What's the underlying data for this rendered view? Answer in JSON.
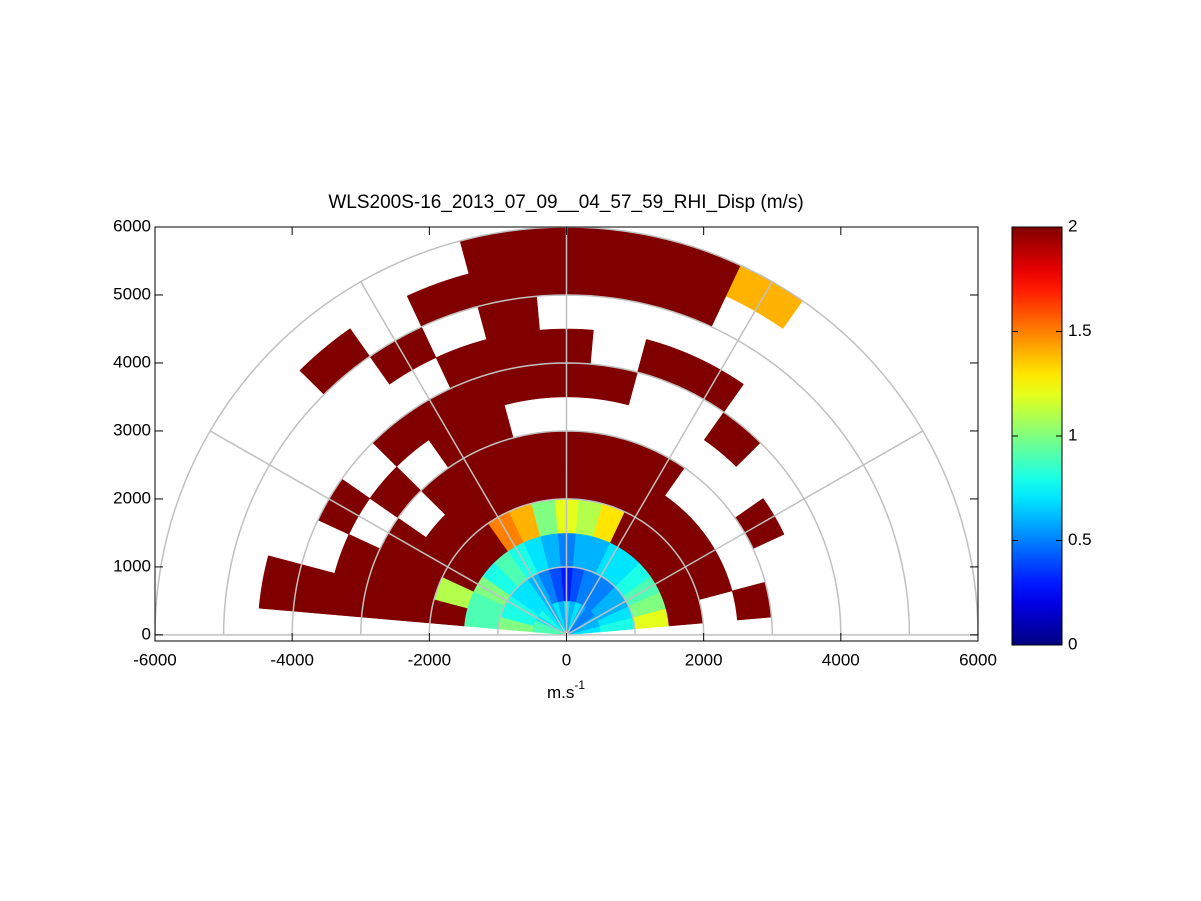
{
  "chart_data": {
    "type": "polar_heatmap",
    "title": "WLS200S-16_2013_07_09__04_57_59_RHI_Disp (m/s)",
    "xlabel": {
      "base": "m.s",
      "superscript": "-1"
    },
    "xlim": [
      -6000,
      6000
    ],
    "xticks": [
      -6000,
      -4000,
      -2000,
      0,
      2000,
      4000,
      6000
    ],
    "ylim": [
      -90,
      6000
    ],
    "yticks": [
      0,
      1000,
      2000,
      3000,
      4000,
      5000,
      6000
    ],
    "polar_grid": {
      "rings": [
        1000,
        2000,
        3000,
        4000,
        5000,
        6000
      ],
      "spokes": [
        0,
        30,
        60,
        90,
        120,
        150,
        180
      ],
      "color": "#c0c0c0"
    },
    "colormap": "jet",
    "clim": [
      0,
      2
    ],
    "cticks": [
      0,
      0.5,
      1,
      1.5,
      2
    ],
    "angles": [
      10,
      20,
      30,
      40,
      50,
      60,
      70,
      80,
      90,
      100,
      110,
      120,
      130,
      140,
      150,
      160,
      170
    ],
    "ranges": [
      0,
      500,
      1000,
      1500,
      2000,
      2500,
      3000,
      3500,
      4000,
      4500,
      5000,
      5500,
      6000
    ],
    "values": [
      [
        0.7,
        0.8,
        1.2,
        2,
        null,
        2,
        null,
        null,
        null,
        null,
        null,
        null
      ],
      [
        0.6,
        0.7,
        1.0,
        2,
        2,
        null,
        null,
        null,
        null,
        null,
        null,
        null
      ],
      [
        0.6,
        0.6,
        0.9,
        2,
        2,
        null,
        2,
        null,
        null,
        null,
        null,
        null
      ],
      [
        0.5,
        0.6,
        0.8,
        2,
        2,
        null,
        null,
        null,
        null,
        null,
        null,
        null
      ],
      [
        0.5,
        0.5,
        0.7,
        2,
        2,
        null,
        null,
        2,
        null,
        null,
        null,
        null
      ],
      [
        0.6,
        0.5,
        0.7,
        2,
        2,
        2,
        null,
        null,
        2,
        null,
        null,
        1.4
      ],
      [
        0.7,
        0.5,
        0.6,
        1.3,
        2,
        2,
        null,
        null,
        2,
        null,
        2,
        2
      ],
      [
        0.6,
        0.4,
        0.6,
        1.1,
        2,
        2,
        null,
        2,
        null,
        null,
        2,
        2
      ],
      [
        0.7,
        0.3,
        0.5,
        1.2,
        2,
        2,
        null,
        2,
        2,
        null,
        2,
        2
      ],
      [
        0.6,
        0.4,
        0.6,
        1.0,
        2,
        2,
        null,
        2,
        2,
        2,
        2,
        2
      ],
      [
        0.7,
        0.5,
        0.7,
        1.4,
        2,
        2,
        2,
        2,
        2,
        null,
        2,
        null
      ],
      [
        0.6,
        0.6,
        0.8,
        1.5,
        2,
        2,
        2,
        2,
        null,
        2,
        null,
        null
      ],
      [
        0.7,
        0.7,
        0.9,
        2,
        2,
        2,
        null,
        2,
        null,
        null,
        2,
        null
      ],
      [
        0.8,
        0.7,
        0.8,
        2,
        2,
        null,
        2,
        null,
        null,
        null,
        null,
        null
      ],
      [
        0.7,
        0.8,
        1.0,
        2,
        2,
        2,
        null,
        2,
        null,
        null,
        null,
        null
      ],
      [
        0.9,
        0.8,
        0.9,
        1.1,
        2,
        2,
        2,
        null,
        null,
        null,
        null,
        null
      ],
      [
        0.9,
        1.0,
        0.9,
        2,
        2,
        2,
        2,
        2,
        2,
        null,
        null,
        null
      ]
    ]
  }
}
